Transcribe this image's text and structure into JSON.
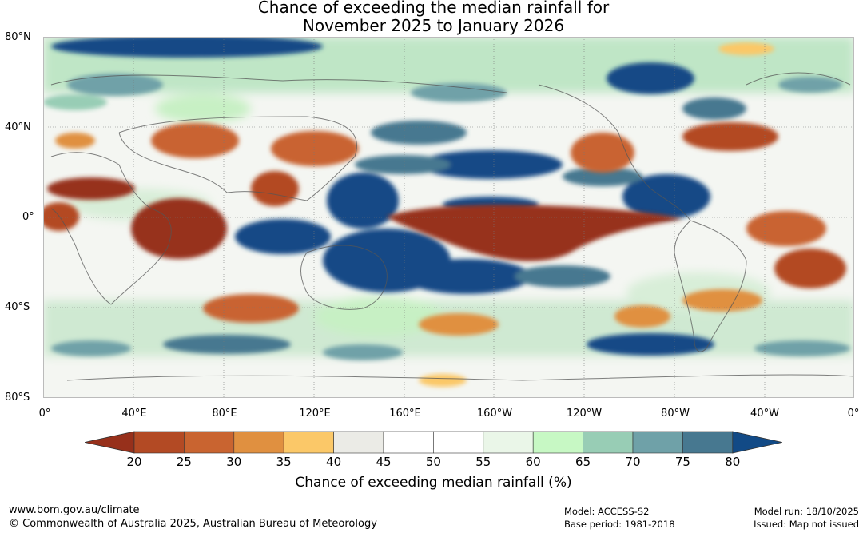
{
  "title": {
    "line1": "Chance of exceeding the median rainfall for",
    "line2": "November 2025 to January 2026"
  },
  "latitude_labels": [
    "80°N",
    "40°N",
    "0°",
    "40°S",
    "80°S"
  ],
  "longitude_labels": [
    "0°",
    "40°E",
    "80°E",
    "120°E",
    "160°E",
    "160°W",
    "120°W",
    "80°W",
    "40°W",
    "0°"
  ],
  "legend": {
    "title": "Chance of exceeding median rainfall (%)",
    "tick_labels": [
      "20",
      "25",
      "30",
      "35",
      "40",
      "45",
      "50",
      "55",
      "60",
      "65",
      "70",
      "75",
      "80"
    ],
    "colors": [
      "#97301b",
      "#b34a24",
      "#c96430",
      "#e09040",
      "#fbc868",
      "#ebebe6",
      "#ffffff",
      "#ffffff",
      "#eaf6e8",
      "#c7f8c4",
      "#98cdb5",
      "#6fa1a8",
      "#477890",
      "#124a86",
      "#124a86"
    ]
  },
  "footer": {
    "website": "www.bom.gov.au/climate",
    "copyright": "© Commonwealth of Australia 2025, Australian Bureau of Meteorology",
    "model": "Model: ACCESS-S2",
    "base_period": "Base period: 1981-2018",
    "model_run": "Model run: 18/10/2025",
    "issued": "Issued: Map not issued"
  }
}
